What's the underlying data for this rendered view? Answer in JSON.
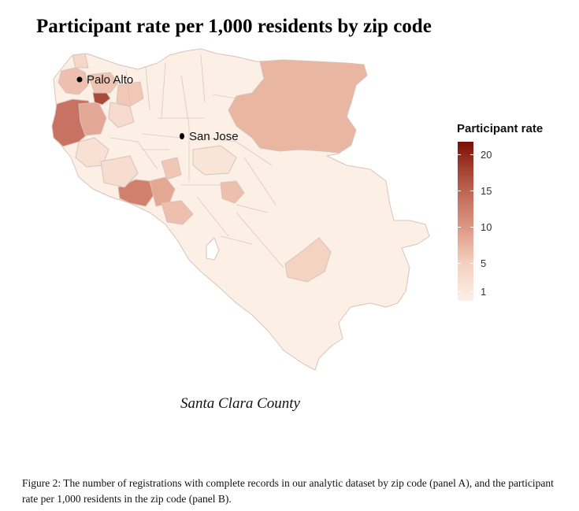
{
  "title": "Participant rate per 1,000 residents by zip code",
  "cities": [
    {
      "name": "Palo Alto"
    },
    {
      "name": "San Jose"
    }
  ],
  "legend": {
    "title": "Participant rate",
    "ticks": [
      "20",
      "15",
      "10",
      "5",
      "1"
    ],
    "colors": {
      "low": "#fcf0e8",
      "mid": "#dd9a86",
      "high": "#7a0d05"
    }
  },
  "county_label": "Santa Clara County",
  "caption": "Figure 2: The number of registrations with complete records in our analytic dataset by zip code (panel A), and the participant rate per 1,000 residents in the zip code (panel B).",
  "region_colors": {
    "very_low": "#fcefe6",
    "low": "#f8e0d3",
    "mid_low": "#f1c8b6",
    "mid": "#e4a893",
    "mid_high": "#d58c77",
    "high": "#c66a58",
    "highest": "#a7493a",
    "border": "#d9c5bc"
  }
}
